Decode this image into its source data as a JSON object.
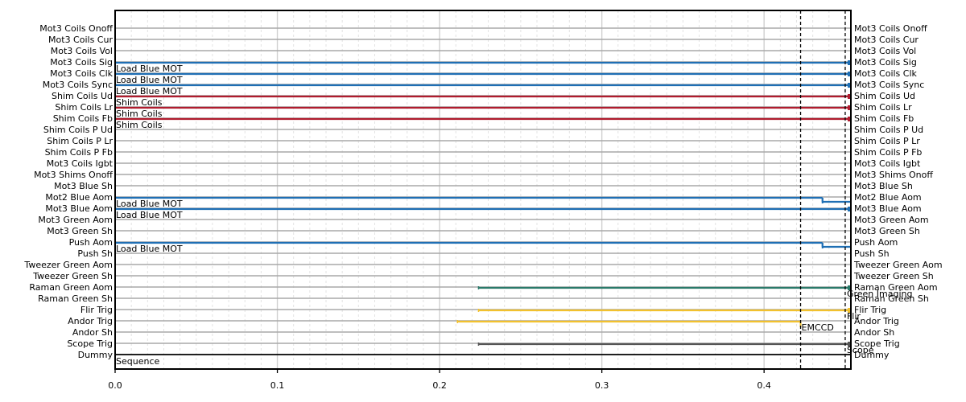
{
  "chart_data": {
    "type": "timing",
    "title": "",
    "xlabel": "",
    "ylabel": "",
    "xlim": [
      0.0,
      0.4535
    ],
    "xticks": [
      "0.0",
      "0.1",
      "0.2",
      "0.3",
      "0.4"
    ],
    "grid": true,
    "vlines": [
      0.4225,
      0.45
    ],
    "channels": [
      "Mot3 Coils Onoff",
      "Mot3 Coils Cur",
      "Mot3 Coils Vol",
      "Mot3 Coils Sig",
      "Mot3 Coils Clk",
      "Mot3 Coils Sync",
      "Shim Coils Ud",
      "Shim Coils Lr",
      "Shim Coils Fb",
      "Shim Coils P Ud",
      "Shim Coils P Lr",
      "Shim Coils P Fb",
      "Mot3 Coils Igbt",
      "Mot3 Shims Onoff",
      "Mot3 Blue Sh",
      "Mot2 Blue Aom",
      "Mot3 Blue Aom",
      "Mot3 Green Aom",
      "Mot3 Green Sh",
      "Push Aom",
      "Push Sh",
      "Tweezer Green Aom",
      "Tweezer Green Sh",
      "Raman Green Aom",
      "Raman Green Sh",
      "Flir Trig",
      "Andor Trig",
      "Andor Sh",
      "Scope Trig",
      "Dummy"
    ],
    "active_segments": [
      {
        "channel": 3,
        "color": "#1f6fb4",
        "x": [
          0.0,
          0.4535
        ]
      },
      {
        "channel": 4,
        "color": "#1f6fb4",
        "x": [
          0.0,
          0.4535
        ]
      },
      {
        "channel": 5,
        "color": "#1f6fb4",
        "x": [
          0.0,
          0.4535
        ]
      },
      {
        "channel": 6,
        "color": "#b01c2e",
        "x": [
          0.0,
          0.4535
        ]
      },
      {
        "channel": 7,
        "color": "#b01c2e",
        "x": [
          0.0,
          0.4535
        ]
      },
      {
        "channel": 8,
        "color": "#b01c2e",
        "x": [
          0.0,
          0.4535
        ]
      },
      {
        "channel": 15,
        "color": "#1f6fb4",
        "x": [
          0.0,
          0.436
        ],
        "step_to": [
          0.436,
          0.4535
        ]
      },
      {
        "channel": 16,
        "color": "#1f6fb4",
        "x": [
          0.0,
          0.4535
        ]
      },
      {
        "channel": 19,
        "color": "#1f6fb4",
        "x": [
          0.0,
          0.436
        ],
        "step_to": [
          0.436,
          0.4535
        ]
      },
      {
        "channel": 23,
        "color": "#2a7a6a",
        "x": [
          0.224,
          0.4535
        ]
      },
      {
        "channel": 25,
        "color": "#f2c12e",
        "x": [
          0.224,
          0.4535
        ]
      },
      {
        "channel": 26,
        "color": "#f2c12e",
        "x": [
          0.211,
          0.4225
        ]
      },
      {
        "channel": 28,
        "color": "#555555",
        "x": [
          0.224,
          0.4535
        ]
      }
    ],
    "annotations": [
      {
        "text": "Load Blue MOT",
        "x": 0.0,
        "channel": 3
      },
      {
        "text": "Load Blue MOT",
        "x": 0.0,
        "channel": 4
      },
      {
        "text": "Load Blue MOT",
        "x": 0.0,
        "channel": 5
      },
      {
        "text": "Shim Coils",
        "x": 0.0,
        "channel": 6
      },
      {
        "text": "Shim Coils",
        "x": 0.0,
        "channel": 7
      },
      {
        "text": "Shim Coils",
        "x": 0.0,
        "channel": 8
      },
      {
        "text": "Load Blue MOT",
        "x": 0.0,
        "channel": 15
      },
      {
        "text": "Load Blue MOT",
        "x": 0.0,
        "channel": 16
      },
      {
        "text": "Load Blue MOT",
        "x": 0.0,
        "channel": 19
      },
      {
        "text": "Green Imaging",
        "x": 0.4505,
        "channel": 23
      },
      {
        "text": "Flir",
        "x": 0.4505,
        "channel": 25
      },
      {
        "text": "EMCCD",
        "x": 0.4225,
        "channel": 26
      },
      {
        "text": "Scope",
        "x": 0.4505,
        "channel": 28
      },
      {
        "text": "Sequence",
        "x": 0.0,
        "channel": 29
      }
    ]
  }
}
